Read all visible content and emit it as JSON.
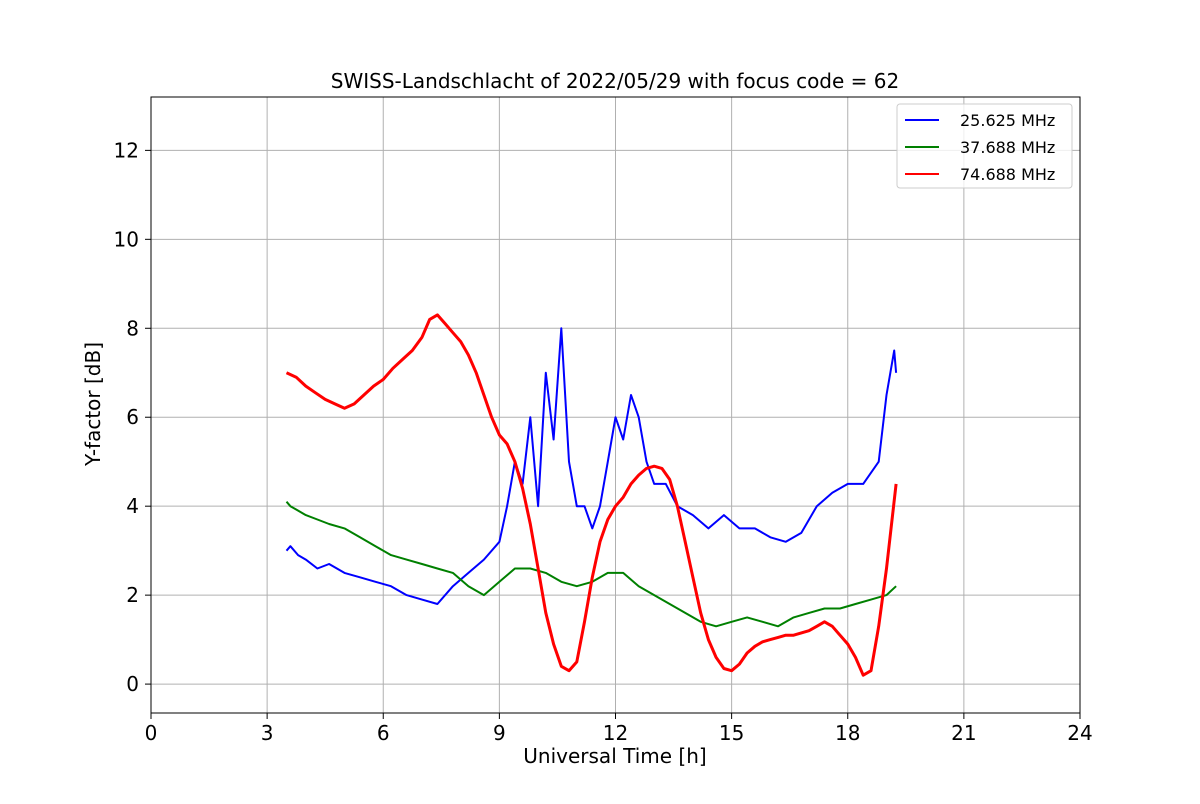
{
  "colors": {
    "blue": "#0000ff",
    "green": "#008000",
    "red": "#ff0000",
    "grid": "#b0b0b0",
    "frame": "#000000",
    "background": "#ffffff"
  },
  "chart_data": {
    "type": "line",
    "title": "SWISS-Landschlacht of 2022/05/29 with focus code = 62",
    "xlabel": "Universal Time [h]",
    "ylabel": "Y-factor [dB]",
    "xlim": [
      0,
      24
    ],
    "ylim": [
      -0.65,
      13.2
    ],
    "xticks": [
      0,
      3,
      6,
      9,
      12,
      15,
      18,
      21,
      24
    ],
    "yticks": [
      0,
      2,
      4,
      6,
      8,
      10,
      12
    ],
    "grid": true,
    "legend_position": "top-right",
    "series": [
      {
        "name": "25.625 MHz",
        "color": "#0000ff",
        "x": [
          3.5,
          3.6,
          3.8,
          4.0,
          4.3,
          4.6,
          5.0,
          5.4,
          5.8,
          6.2,
          6.6,
          7.0,
          7.4,
          7.8,
          8.2,
          8.6,
          9.0,
          9.2,
          9.4,
          9.6,
          9.8,
          10.0,
          10.2,
          10.4,
          10.6,
          10.8,
          11.0,
          11.2,
          11.4,
          11.6,
          11.8,
          12.0,
          12.2,
          12.4,
          12.6,
          12.8,
          13.0,
          13.3,
          13.6,
          14.0,
          14.4,
          14.8,
          15.2,
          15.6,
          16.0,
          16.4,
          16.8,
          17.2,
          17.6,
          18.0,
          18.4,
          18.8,
          19.0,
          19.2,
          19.25
        ],
        "values": [
          3.0,
          3.1,
          2.9,
          2.8,
          2.6,
          2.7,
          2.5,
          2.4,
          2.3,
          2.2,
          2.0,
          1.9,
          1.8,
          2.2,
          2.5,
          2.8,
          3.2,
          4.0,
          5.0,
          4.5,
          6.0,
          4.0,
          7.0,
          5.5,
          8.0,
          5.0,
          4.0,
          4.0,
          3.5,
          4.0,
          5.0,
          6.0,
          5.5,
          6.5,
          6.0,
          5.0,
          4.5,
          4.5,
          4.0,
          3.8,
          3.5,
          3.8,
          3.5,
          3.5,
          3.3,
          3.2,
          3.4,
          4.0,
          4.3,
          4.5,
          4.5,
          5.0,
          6.5,
          7.5,
          7.0
        ]
      },
      {
        "name": "37.688 MHz",
        "color": "#008000",
        "x": [
          3.5,
          3.6,
          3.8,
          4.0,
          4.3,
          4.6,
          5.0,
          5.4,
          5.8,
          6.2,
          6.6,
          7.0,
          7.4,
          7.8,
          8.2,
          8.6,
          9.0,
          9.4,
          9.8,
          10.2,
          10.6,
          11.0,
          11.4,
          11.8,
          12.2,
          12.6,
          13.0,
          13.4,
          13.8,
          14.2,
          14.6,
          15.0,
          15.4,
          15.8,
          16.2,
          16.6,
          17.0,
          17.4,
          17.8,
          18.2,
          18.6,
          19.0,
          19.25
        ],
        "values": [
          4.1,
          4.0,
          3.9,
          3.8,
          3.7,
          3.6,
          3.5,
          3.3,
          3.1,
          2.9,
          2.8,
          2.7,
          2.6,
          2.5,
          2.2,
          2.0,
          2.3,
          2.6,
          2.6,
          2.5,
          2.3,
          2.2,
          2.3,
          2.5,
          2.5,
          2.2,
          2.0,
          1.8,
          1.6,
          1.4,
          1.3,
          1.4,
          1.5,
          1.4,
          1.3,
          1.5,
          1.6,
          1.7,
          1.7,
          1.8,
          1.9,
          2.0,
          2.2
        ]
      },
      {
        "name": "74.688 MHz",
        "color": "#ff0000",
        "x": [
          3.5,
          3.75,
          4.0,
          4.25,
          4.5,
          4.75,
          5.0,
          5.25,
          5.5,
          5.75,
          6.0,
          6.25,
          6.5,
          6.75,
          7.0,
          7.2,
          7.4,
          7.6,
          7.8,
          8.0,
          8.2,
          8.4,
          8.6,
          8.8,
          9.0,
          9.2,
          9.4,
          9.6,
          9.8,
          10.0,
          10.2,
          10.4,
          10.6,
          10.8,
          11.0,
          11.2,
          11.4,
          11.6,
          11.8,
          12.0,
          12.2,
          12.4,
          12.6,
          12.8,
          13.0,
          13.2,
          13.4,
          13.6,
          13.8,
          14.0,
          14.2,
          14.4,
          14.6,
          14.8,
          15.0,
          15.2,
          15.4,
          15.6,
          15.8,
          16.0,
          16.2,
          16.4,
          16.6,
          16.8,
          17.0,
          17.2,
          17.4,
          17.6,
          17.8,
          18.0,
          18.2,
          18.4,
          18.6,
          18.8,
          19.0,
          19.25
        ],
        "values": [
          7.0,
          6.9,
          6.7,
          6.55,
          6.4,
          6.3,
          6.2,
          6.3,
          6.5,
          6.7,
          6.85,
          7.1,
          7.3,
          7.5,
          7.8,
          8.2,
          8.3,
          8.1,
          7.9,
          7.7,
          7.4,
          7.0,
          6.5,
          6.0,
          5.6,
          5.4,
          5.0,
          4.4,
          3.6,
          2.6,
          1.6,
          0.9,
          0.4,
          0.3,
          0.5,
          1.4,
          2.4,
          3.2,
          3.7,
          4.0,
          4.2,
          4.5,
          4.7,
          4.85,
          4.9,
          4.85,
          4.6,
          4.0,
          3.2,
          2.4,
          1.6,
          1.0,
          0.6,
          0.35,
          0.3,
          0.45,
          0.7,
          0.85,
          0.95,
          1.0,
          1.05,
          1.1,
          1.1,
          1.15,
          1.2,
          1.3,
          1.4,
          1.3,
          1.1,
          0.9,
          0.6,
          0.2,
          0.3,
          1.3,
          2.6,
          4.5
        ]
      }
    ]
  }
}
